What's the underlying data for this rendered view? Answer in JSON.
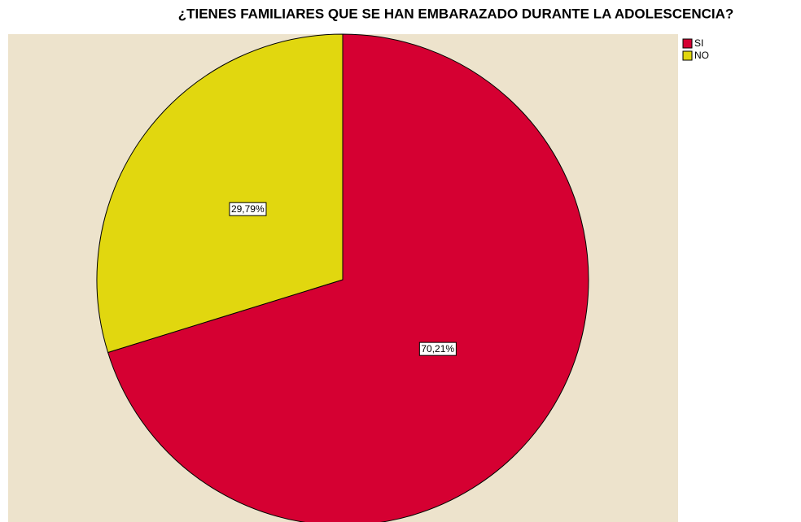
{
  "chart_data": {
    "type": "pie",
    "title": "¿TIENES  FAMILIARES  QUE SE HAN EMBARAZADO DURANTE LA ADOLESCENCIA?",
    "categories": [
      "SI",
      "NO"
    ],
    "values": [
      70.21,
      29.79
    ],
    "value_labels": [
      "70,21%",
      "29,79%"
    ],
    "colors": [
      "#d50032",
      "#e1d70f"
    ],
    "background": "#ede3cc",
    "legend": "top-right"
  }
}
